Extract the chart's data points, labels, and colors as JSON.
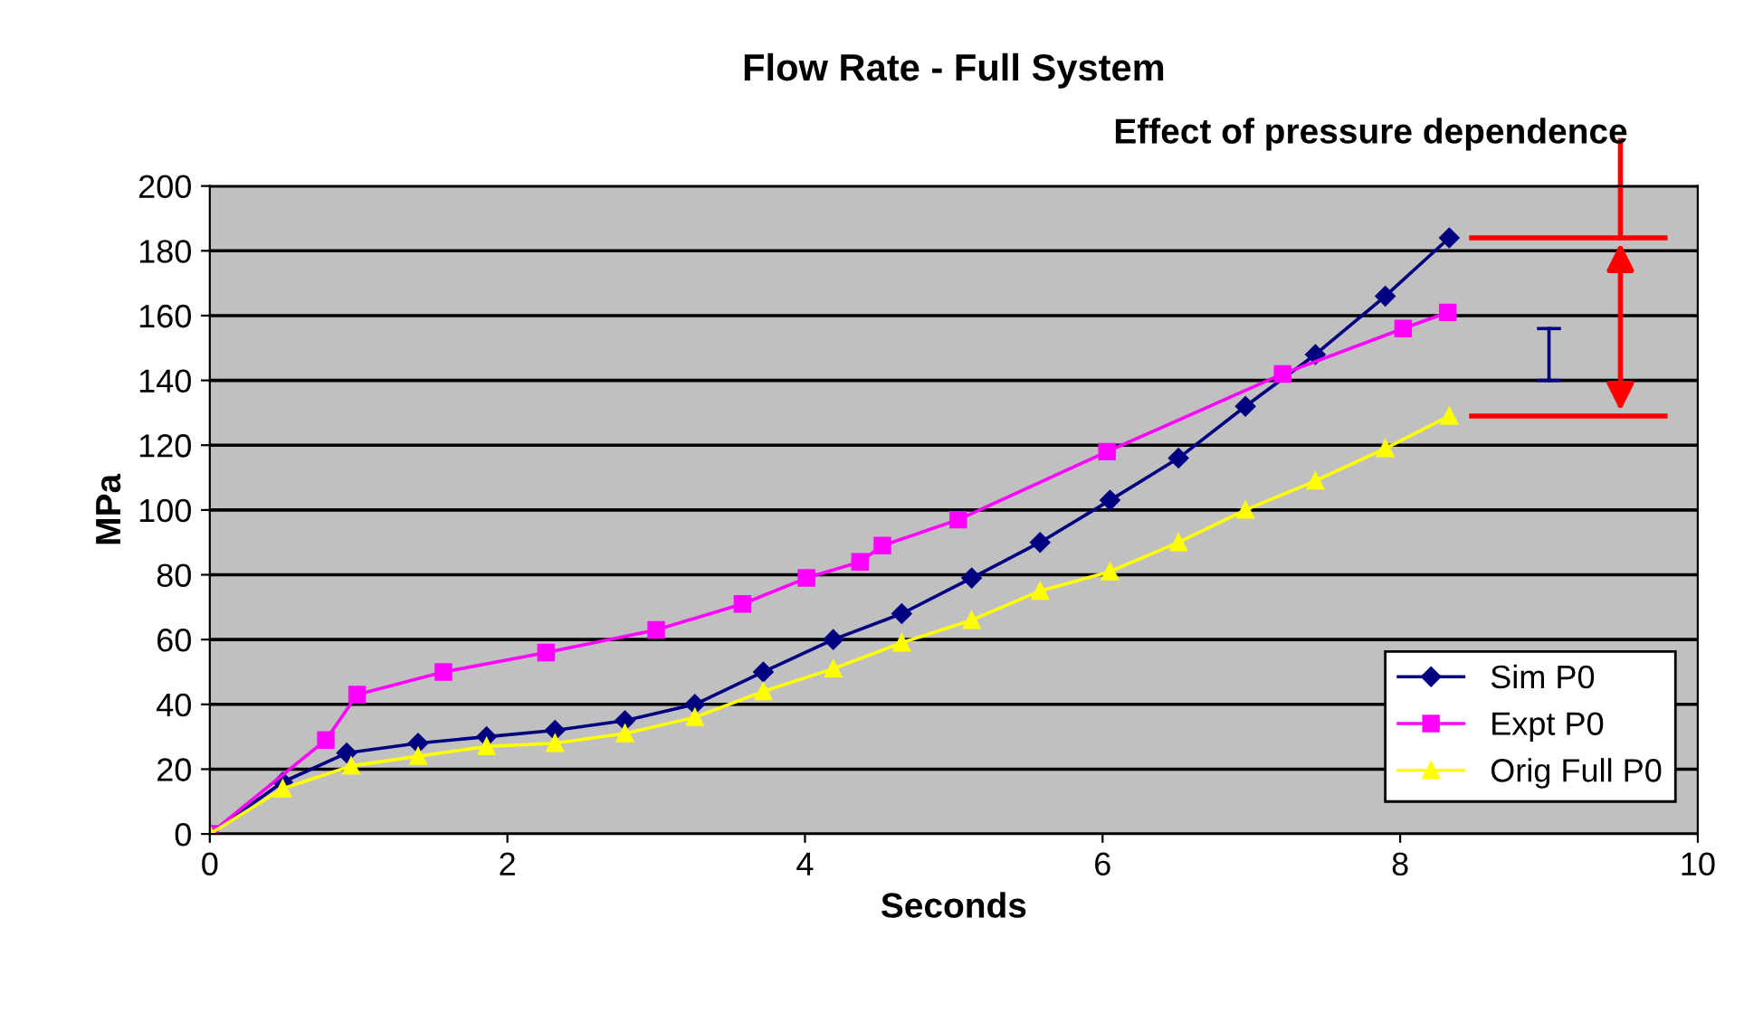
{
  "chart_data": {
    "type": "line",
    "title": "Flow Rate - Full System",
    "xlabel": "Seconds",
    "ylabel": "MPa",
    "xlim": [
      0,
      10
    ],
    "xticks": [
      0,
      2,
      4,
      6,
      8,
      10
    ],
    "ylim": [
      0,
      200
    ],
    "yticks": [
      0,
      20,
      40,
      60,
      80,
      100,
      120,
      140,
      160,
      180,
      200
    ],
    "grid": "y",
    "legend": "bottom right",
    "line_style": "solid",
    "annotations": [
      {
        "text": "Effect of pressure dependence",
        "x": 9.48,
        "y": 184
      }
    ],
    "ref_lines": [
      {
        "axis": "y",
        "value": 184,
        "color": "#ff0000"
      },
      {
        "axis": "y",
        "value": 129,
        "color": "#ff0000"
      }
    ],
    "series": [
      {
        "name": "Sim P0",
        "color": "#000080",
        "marker": "diamond",
        "x": [
          0,
          0.49,
          0.92,
          1.4,
          1.86,
          2.32,
          2.79,
          3.26,
          3.72,
          4.19,
          4.65,
          5.12,
          5.58,
          6.05,
          6.51,
          6.96,
          7.43,
          7.9,
          8.33
        ],
        "values": [
          0,
          16,
          25,
          28,
          30,
          32,
          35,
          40,
          50,
          60,
          68,
          79,
          90,
          103,
          116,
          132,
          148,
          166,
          184
        ]
      },
      {
        "name": "Expt P0",
        "color": "#ff00ff",
        "marker": "square",
        "x": [
          0,
          0.78,
          0.99,
          1.57,
          2.26,
          3.0,
          3.58,
          4.01,
          4.37,
          4.52,
          5.03,
          6.03,
          7.21,
          8.02,
          8.32
        ],
        "values": [
          0,
          29,
          43,
          50,
          56,
          63,
          71,
          79,
          84,
          89,
          97,
          118,
          142,
          156,
          161
        ]
      },
      {
        "name": "Orig Full P0",
        "color": "#ffff00",
        "marker": "triangle",
        "x": [
          0,
          0.49,
          0.95,
          1.4,
          1.86,
          2.32,
          2.79,
          3.26,
          3.72,
          4.19,
          4.65,
          5.12,
          5.58,
          6.05,
          6.51,
          6.96,
          7.43,
          7.9,
          8.33
        ],
        "values": [
          0,
          14,
          21,
          24,
          27,
          28,
          31,
          36,
          44,
          51,
          59,
          66,
          75,
          81,
          90,
          100,
          109,
          119,
          129
        ]
      }
    ]
  }
}
